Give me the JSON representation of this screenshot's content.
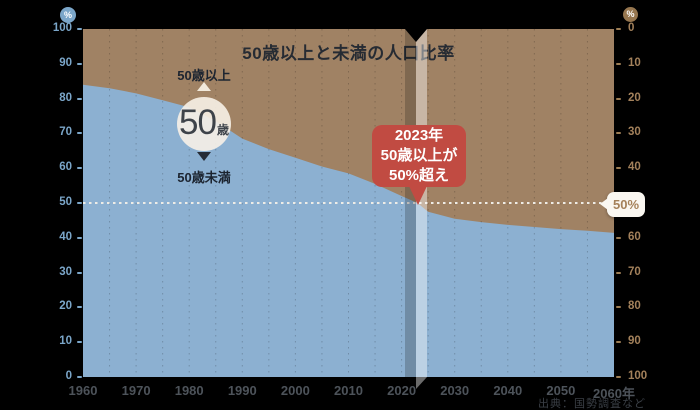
{
  "title": "50歳以上と未満の人口比率",
  "source": "出典：国勢調査など",
  "left_axis": {
    "unit": "%",
    "ticks": [
      {
        "label": "100",
        "value": 100
      },
      {
        "label": "90",
        "value": 90
      },
      {
        "label": "80",
        "value": 80
      },
      {
        "label": "70",
        "value": 70
      },
      {
        "label": "60",
        "value": 60
      },
      {
        "label": "50",
        "value": 50
      },
      {
        "label": "40",
        "value": 40
      },
      {
        "label": "30",
        "value": 30
      },
      {
        "label": "20",
        "value": 20
      },
      {
        "label": "10",
        "value": 10
      },
      {
        "label": "0",
        "value": 0
      }
    ]
  },
  "right_axis": {
    "unit": "%",
    "ticks": [
      {
        "label": "0",
        "value": 0
      },
      {
        "label": "10",
        "value": 10
      },
      {
        "label": "20",
        "value": 20
      },
      {
        "label": "30",
        "value": 30
      },
      {
        "label": "40",
        "value": 40
      },
      {
        "label": "60",
        "value": 60
      },
      {
        "label": "70",
        "value": 70
      },
      {
        "label": "80",
        "value": 80
      },
      {
        "label": "90",
        "value": 90
      },
      {
        "label": "100",
        "value": 100
      }
    ]
  },
  "x_axis": {
    "ticks": [
      {
        "label": "1960",
        "year": 1960
      },
      {
        "label": "1970",
        "year": 1970
      },
      {
        "label": "1980",
        "year": 1980
      },
      {
        "label": "1990",
        "year": 1990
      },
      {
        "label": "2000",
        "year": 2000
      },
      {
        "label": "2010",
        "year": 2010
      },
      {
        "label": "2020",
        "year": 2020
      },
      {
        "label": "2030",
        "year": 2030
      },
      {
        "label": "2040",
        "year": 2040
      },
      {
        "label": "2050",
        "year": 2050
      },
      {
        "label": "2060年",
        "year": 2060
      }
    ]
  },
  "annotations": {
    "over_label": "50歳以上",
    "under_label": "50歳未満",
    "age_circle": {
      "number": "50",
      "suffix": "歳"
    },
    "event_bubble": {
      "lines": [
        "2023年",
        "50歳以上が",
        "50%超え"
      ],
      "year": 2023
    },
    "fifty_pct_tag": "50%"
  },
  "colors": {
    "background": "#000000",
    "under_area": "#8cb0d1",
    "over_area": "#a08264",
    "gridline": "rgba(0,0,0,0.2)",
    "fifty_line": "#eeece6",
    "left_axis": "#7ba6c9",
    "right_axis": "#a3815b",
    "event_bubble": "#c14b42",
    "age_circle": "#f4ecdf"
  },
  "chart_data": {
    "type": "area",
    "title": "50歳以上と未満の人口比率",
    "stacked": true,
    "x": [
      1960,
      1965,
      1970,
      1975,
      1980,
      1985,
      1990,
      1995,
      2000,
      2005,
      2010,
      2015,
      2020,
      2023,
      2025,
      2030,
      2035,
      2040,
      2045,
      2050,
      2055,
      2060
    ],
    "series": [
      {
        "name": "50歳未満",
        "color": "#8cb0d1",
        "values": [
          84,
          83,
          81.5,
          79.5,
          77.5,
          73.5,
          68.5,
          65.5,
          63,
          60.5,
          58.5,
          55.5,
          52,
          50,
          47.5,
          45.5,
          44.5,
          43.7,
          43.1,
          42.5,
          42,
          41.4
        ]
      },
      {
        "name": "50歳以上",
        "color": "#a08264",
        "values": [
          16,
          17,
          18.5,
          20.5,
          22.5,
          26.5,
          31.5,
          34.5,
          37,
          39.5,
          41.5,
          44.5,
          48,
          50,
          52.5,
          54.5,
          55.5,
          56.3,
          56.9,
          57.5,
          58,
          58.6
        ]
      }
    ],
    "xlabel": "年",
    "ylabel": "%",
    "ylim": [
      0,
      100
    ],
    "xlim": [
      1960,
      2060
    ],
    "grid": "vertical dotted every 5 years",
    "reference_line": {
      "value": 50,
      "label": "50%"
    },
    "highlight": {
      "year": 2023,
      "note": "2023年 50歳以上が 50%超え"
    }
  }
}
